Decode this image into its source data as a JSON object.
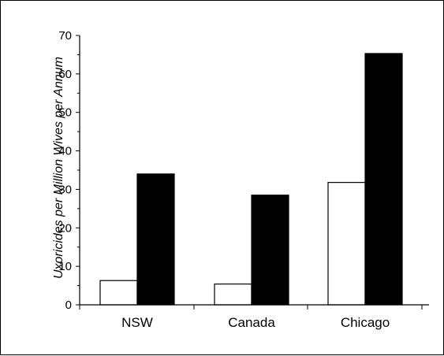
{
  "chart_data": {
    "type": "bar",
    "title": "",
    "xlabel": "",
    "ylabel": "Uxoricides per Million Wives per Annum",
    "ylim": [
      0,
      70
    ],
    "yticks": [
      0,
      10,
      20,
      30,
      40,
      50,
      60,
      70
    ],
    "categories": [
      "NSW",
      "Canada",
      "Chicago"
    ],
    "series": [
      {
        "values": [
          6.3,
          5.4,
          31.8
        ],
        "color": "#ffffff"
      },
      {
        "values": [
          34.0,
          28.5,
          65.3
        ],
        "color": "#000000"
      }
    ],
    "grid": false,
    "legend": "none"
  }
}
